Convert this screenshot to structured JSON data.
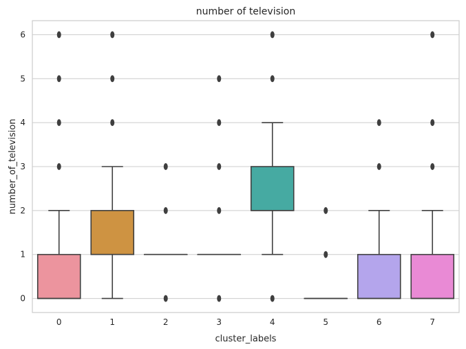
{
  "chart_data": {
    "type": "box",
    "title": "number of television",
    "xlabel": "cluster_labels",
    "ylabel": "number_of_television",
    "ylim": [
      -0.32,
      6.32
    ],
    "yticks": [
      0,
      1,
      2,
      3,
      4,
      5,
      6
    ],
    "ytick_labels": [
      "0",
      "1",
      "2",
      "3",
      "4",
      "5",
      "6"
    ],
    "grid": "horizontal",
    "categories": [
      "0",
      "1",
      "2",
      "3",
      "4",
      "5",
      "6",
      "7"
    ],
    "boxes": [
      {
        "category": "0",
        "whisker_low": 0,
        "q1": 0,
        "median": 0,
        "q3": 1,
        "whisker_high": 2,
        "outliers": [
          3,
          4,
          5,
          6
        ],
        "color": "#ec949e"
      },
      {
        "category": "1",
        "whisker_low": 0,
        "q1": 1,
        "median": 1,
        "q3": 2,
        "whisker_high": 3,
        "outliers": [
          4,
          5,
          6
        ],
        "color": "#ce9342"
      },
      {
        "category": "2",
        "whisker_low": 1,
        "q1": 1,
        "median": 1,
        "q3": 1,
        "whisker_high": 1,
        "outliers": [
          0,
          2,
          3
        ],
        "color": "#9da547"
      },
      {
        "category": "3",
        "whisker_low": 1,
        "q1": 1,
        "median": 1,
        "q3": 1,
        "whisker_high": 1,
        "outliers": [
          0,
          2,
          3,
          4,
          5
        ],
        "color": "#4fb13c"
      },
      {
        "category": "4",
        "whisker_low": 1,
        "q1": 2,
        "median": 2,
        "q3": 3,
        "whisker_high": 4,
        "outliers": [
          0,
          5,
          6
        ],
        "color": "#46aaa2"
      },
      {
        "category": "5",
        "whisker_low": 0,
        "q1": 0,
        "median": 0,
        "q3": 0,
        "whisker_high": 0,
        "outliers": [
          1,
          2
        ],
        "color": "#4aa9d4"
      },
      {
        "category": "6",
        "whisker_low": 0,
        "q1": 0,
        "median": 0,
        "q3": 1,
        "whisker_high": 2,
        "outliers": [
          3,
          4
        ],
        "color": "#b4a5ec"
      },
      {
        "category": "7",
        "whisker_low": 0,
        "q1": 0,
        "median": 0,
        "q3": 1,
        "whisker_high": 2,
        "outliers": [
          3,
          4,
          6
        ],
        "color": "#e98ad5"
      }
    ]
  }
}
